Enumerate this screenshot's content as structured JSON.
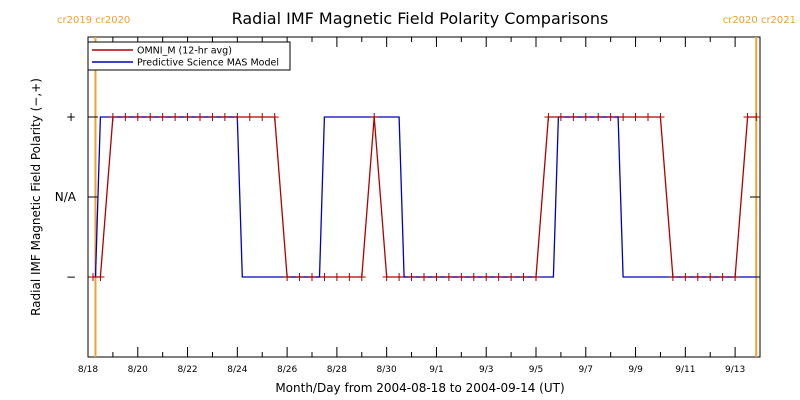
{
  "chart_data": {
    "type": "line",
    "title": "Radial IMF Magnetic Field Polarity Comparisons",
    "xlabel": "Month/Day from 2004-08-18 to 2004-09-14 (UT)",
    "ylabel": "Radial IMF Magnetic Field Polarity (−,+)",
    "x_tick_labels": [
      "8/18",
      "8/20",
      "8/22",
      "8/24",
      "8/26",
      "8/28",
      "8/30",
      "9/1",
      "9/3",
      "9/5",
      "9/7",
      "9/9",
      "9/11",
      "9/13"
    ],
    "x_tick_days": [
      0,
      2,
      4,
      6,
      8,
      10,
      12,
      14,
      16,
      18,
      20,
      22,
      24,
      26
    ],
    "xlim": [
      0,
      27
    ],
    "y_tick_labels": [
      "−",
      "N/A",
      "+"
    ],
    "y_tick_values": [
      -1,
      0,
      1
    ],
    "ylim": [
      -2,
      2
    ],
    "legend_placement": "top-left",
    "carrington_markers": [
      {
        "day": 0.3,
        "label": "cr2019 cr2020",
        "label_side": "left"
      },
      {
        "day": 26.85,
        "label": "cr2020 cr2021",
        "label_side": "right"
      }
    ],
    "series": [
      {
        "name": "OMNI_M (12-hr avg)",
        "color": "#b00000",
        "marker": "plus",
        "x": [
          0.2,
          0.5,
          1.0,
          1.5,
          2.0,
          2.5,
          3.0,
          3.5,
          4.0,
          4.5,
          5.0,
          5.5,
          6.0,
          6.5,
          7.0,
          7.5,
          8.0,
          8.5,
          9.0,
          9.5,
          10.0,
          10.5,
          11.0,
          11.5,
          12.0,
          12.5,
          13.0,
          13.5,
          14.0,
          14.5,
          15.0,
          15.5,
          16.0,
          16.5,
          17.0,
          17.5,
          18.0,
          18.5,
          19.0,
          19.5,
          20.0,
          20.5,
          21.0,
          21.5,
          22.0,
          22.5,
          23.0,
          23.5,
          24.0,
          24.5,
          25.0,
          25.5,
          26.0,
          26.5,
          26.85
        ],
        "y": [
          -1,
          -1,
          1,
          1,
          1,
          1,
          1,
          1,
          1,
          1,
          1,
          1,
          1,
          1,
          1,
          1,
          -1,
          -1,
          -1,
          -1,
          -1,
          -1,
          -1,
          1,
          -1,
          -1,
          -1,
          -1,
          -1,
          -1,
          -1,
          -1,
          -1,
          -1,
          -1,
          -1,
          -1,
          1,
          1,
          1,
          1,
          1,
          1,
          1,
          1,
          1,
          1,
          -1,
          -1,
          -1,
          -1,
          -1,
          -1,
          1,
          1
        ]
      },
      {
        "name": "Predictive Science MAS Model",
        "color": "#0000c0",
        "marker": "none",
        "x": [
          0.3,
          0.5,
          0.7,
          6.0,
          6.2,
          9.3,
          9.5,
          10.9,
          11.1,
          12.5,
          12.7,
          18.7,
          18.9,
          21.3,
          21.5,
          26.85
        ],
        "y": [
          -1,
          1,
          1,
          1,
          -1,
          -1,
          1,
          1,
          1,
          1,
          -1,
          -1,
          1,
          1,
          -1,
          -1
        ]
      }
    ]
  }
}
